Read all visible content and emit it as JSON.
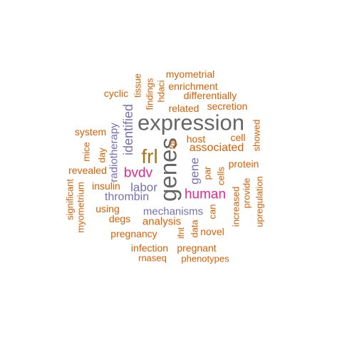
{
  "colors": {
    "orange": "#d95f02",
    "purple": "#7570b3",
    "magenta": "#e7298a",
    "gold": "#a6761d",
    "gray": "#666666"
  },
  "words": [
    {
      "id": "expression",
      "text": "expression",
      "color": "gray",
      "rotated": false
    },
    {
      "id": "genes",
      "text": "genes",
      "color": "gray",
      "rotated": true
    },
    {
      "id": "frl",
      "text": "frl",
      "color": "gold",
      "rotated": false
    },
    {
      "id": "bvdv",
      "text": "bvdv",
      "color": "magenta",
      "rotated": false
    },
    {
      "id": "human",
      "text": "human",
      "color": "magenta",
      "rotated": false
    },
    {
      "id": "identified",
      "text": "identified",
      "color": "purple",
      "rotated": true
    },
    {
      "id": "radiotherapy",
      "text": "radiotherapy",
      "color": "purple",
      "rotated": true
    },
    {
      "id": "labor",
      "text": "labor",
      "color": "purple",
      "rotated": false
    },
    {
      "id": "thrombin",
      "text": "thrombin",
      "color": "purple",
      "rotated": false
    },
    {
      "id": "mechanisms",
      "text": "mechanisms",
      "color": "purple",
      "rotated": false
    },
    {
      "id": "gene",
      "text": "gene",
      "color": "purple",
      "rotated": true
    },
    {
      "id": "associated",
      "text": "associated",
      "color": "orange",
      "rotated": false
    },
    {
      "id": "analysis",
      "text": "analysis",
      "color": "orange",
      "rotated": false
    },
    {
      "id": "myometrial",
      "text": "myometrial",
      "color": "orange",
      "rotated": false
    },
    {
      "id": "enrichment",
      "text": "enrichment",
      "color": "orange",
      "rotated": false
    },
    {
      "id": "differentially",
      "text": "differentially",
      "color": "orange",
      "rotated": false
    },
    {
      "id": "cyclic",
      "text": "cyclic",
      "color": "orange",
      "rotated": false
    },
    {
      "id": "tissue",
      "text": "tissue",
      "color": "orange",
      "rotated": true
    },
    {
      "id": "findings",
      "text": "findings",
      "color": "orange",
      "rotated": true
    },
    {
      "id": "hdaci",
      "text": "hdaci",
      "color": "orange",
      "rotated": true
    },
    {
      "id": "related",
      "text": "related",
      "color": "orange",
      "rotated": false
    },
    {
      "id": "secretion",
      "text": "secretion",
      "color": "orange",
      "rotated": false
    },
    {
      "id": "system",
      "text": "system",
      "color": "orange",
      "rotated": false
    },
    {
      "id": "host",
      "text": "host",
      "color": "orange",
      "rotated": false
    },
    {
      "id": "cell",
      "text": "cell",
      "color": "orange",
      "rotated": false
    },
    {
      "id": "showed",
      "text": "showed",
      "color": "orange",
      "rotated": true
    },
    {
      "id": "mice",
      "text": "mice",
      "color": "orange",
      "rotated": true
    },
    {
      "id": "day",
      "text": "day",
      "color": "orange",
      "rotated": true
    },
    {
      "id": "fgl",
      "text": "fgl",
      "color": "orange",
      "rotated": true
    },
    {
      "id": "protein",
      "text": "protein",
      "color": "orange",
      "rotated": false
    },
    {
      "id": "revealed",
      "text": "revealed",
      "color": "orange",
      "rotated": false
    },
    {
      "id": "cells",
      "text": "cells",
      "color": "orange",
      "rotated": true
    },
    {
      "id": "par",
      "text": "par",
      "color": "orange",
      "rotated": true
    },
    {
      "id": "significant",
      "text": "significant",
      "color": "orange",
      "rotated": true
    },
    {
      "id": "myometrium",
      "text": "myometrium",
      "color": "orange",
      "rotated": true
    },
    {
      "id": "insulin",
      "text": "insulin",
      "color": "orange",
      "rotated": false
    },
    {
      "id": "provide",
      "text": "provide",
      "color": "orange",
      "rotated": true
    },
    {
      "id": "upregulation",
      "text": "upregulation",
      "color": "orange",
      "rotated": true
    },
    {
      "id": "increased",
      "text": "increased",
      "color": "orange",
      "rotated": true
    },
    {
      "id": "can",
      "text": "can",
      "color": "orange",
      "rotated": true
    },
    {
      "id": "using",
      "text": "using",
      "color": "orange",
      "rotated": false
    },
    {
      "id": "degs",
      "text": "degs",
      "color": "orange",
      "rotated": false
    },
    {
      "id": "data",
      "text": "data",
      "color": "orange",
      "rotated": true
    },
    {
      "id": "novel",
      "text": "novel",
      "color": "orange",
      "rotated": false
    },
    {
      "id": "pregnancy",
      "text": "pregnancy",
      "color": "orange",
      "rotated": false
    },
    {
      "id": "ifnt",
      "text": "ifnt",
      "color": "orange",
      "rotated": true
    },
    {
      "id": "infection",
      "text": "infection",
      "color": "orange",
      "rotated": false
    },
    {
      "id": "pregnant",
      "text": "pregnant",
      "color": "orange",
      "rotated": false
    },
    {
      "id": "rnaseq",
      "text": "rnaseq",
      "color": "orange",
      "rotated": false
    },
    {
      "id": "phenotypes",
      "text": "phenotypes",
      "color": "orange",
      "rotated": false
    }
  ]
}
